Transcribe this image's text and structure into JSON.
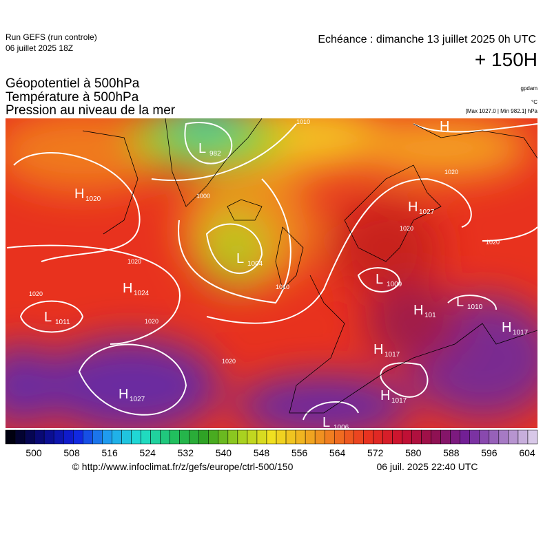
{
  "header": {
    "run": "Run GEFS (run controle)",
    "run_date": "06 juillet 2025 18Z",
    "valid": "Echéance : dimanche 13 juillet 2025 0h UTC",
    "lead": "+ 150H"
  },
  "titles": [
    "Géopotentiel à 500hPa",
    "Température à 500hPa",
    "Pression au niveau de la mer"
  ],
  "units": {
    "geopotential": "gpdam",
    "temperature": "°C",
    "pressure": "[Max 1027.0 | Min 982.1] hPa"
  },
  "map": {
    "centers": [
      {
        "type": "H",
        "value": "1020"
      },
      {
        "type": "H",
        "value": "1024"
      },
      {
        "type": "L",
        "value": "1011"
      },
      {
        "type": "H",
        "value": "1027"
      },
      {
        "type": "L",
        "value": "982"
      },
      {
        "type": "L",
        "value": "1004"
      },
      {
        "type": "L",
        "value": "1009"
      },
      {
        "type": "H",
        "value": "1027"
      },
      {
        "type": "H",
        "value": "101"
      },
      {
        "type": "L",
        "value": "1010"
      },
      {
        "type": "H",
        "value": "1017"
      },
      {
        "type": "H",
        "value": "1017"
      },
      {
        "type": "H",
        "value": "1017"
      },
      {
        "type": "L",
        "value": "1006"
      },
      {
        "type": "H",
        "value": ""
      }
    ],
    "isobar_labels": [
      "1020",
      "1020",
      "1020",
      "1020",
      "1010",
      "1000",
      "1020",
      "1020",
      "1020",
      "1010"
    ]
  },
  "colorbar": {
    "labels": [
      500,
      508,
      516,
      524,
      532,
      540,
      548,
      556,
      564,
      572,
      580,
      588,
      596,
      604
    ]
  },
  "footer": {
    "source": "© http://www.infoclimat.fr/z/gefs/europe/ctrl-500/150",
    "generated": "06 juil. 2025 22:40 UTC"
  }
}
